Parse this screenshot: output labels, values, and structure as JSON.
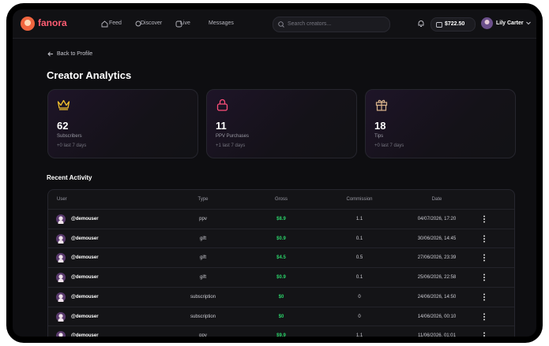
{
  "nav": {
    "logo": "fanora",
    "links": [
      "Feed",
      "Discover",
      "Live",
      "Messages"
    ],
    "search_placeholder": "Search creators...",
    "balance": "$722.50",
    "user": "Lily Carter"
  },
  "back": "Back to Profile",
  "title": "Creator Analytics",
  "cards": [
    {
      "value": "62",
      "label": "Subscribers",
      "delta": "+0 last 7 days"
    },
    {
      "value": "11",
      "label": "PPV Purchases",
      "delta": "+1 last 7 days"
    },
    {
      "value": "18",
      "label": "Tips",
      "delta": "+0 last 7 days"
    }
  ],
  "section_title": "Recent Activity",
  "table": {
    "headers": [
      "User",
      "Type",
      "Gross",
      "Commission",
      "Date"
    ],
    "rows": [
      [
        "@demouser",
        "ppv",
        "$8.9",
        "1.1",
        "04/07/2026, 17:20"
      ],
      [
        "@demouser",
        "gift",
        "$0.9",
        "0.1",
        "30/06/2026, 14:45"
      ],
      [
        "@demouser",
        "gift",
        "$4.5",
        "0.5",
        "27/06/2026, 23:39"
      ],
      [
        "@demouser",
        "gift",
        "$0.9",
        "0.1",
        "25/06/2026, 22:58"
      ],
      [
        "@demouser",
        "subscription",
        "$0",
        "0",
        "24/06/2026, 14:50"
      ],
      [
        "@demouser",
        "subscription",
        "$0",
        "0",
        "14/06/2026, 00:10"
      ],
      [
        "@demouser",
        "ppv",
        "$9.9",
        "1.1",
        "11/06/2026, 01:01"
      ]
    ]
  }
}
